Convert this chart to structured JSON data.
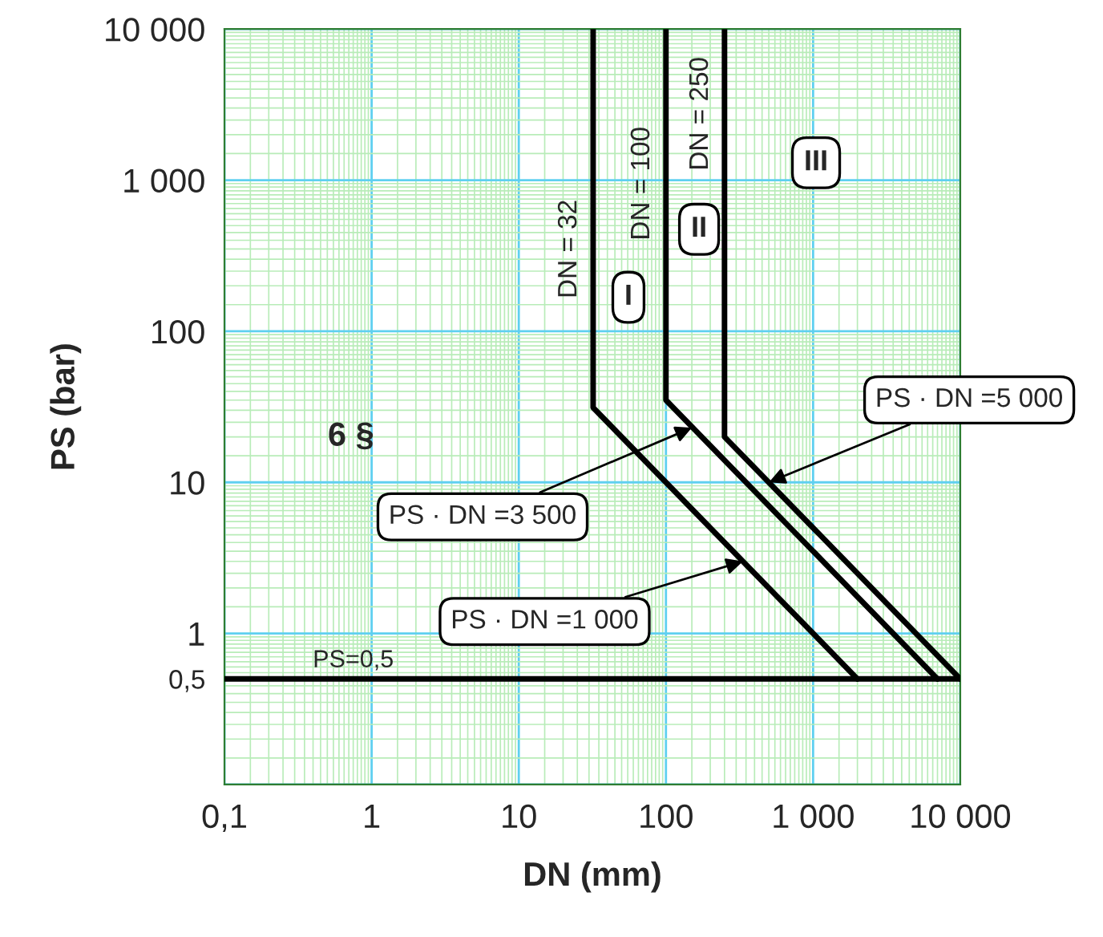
{
  "chart_data": {
    "type": "line",
    "xlabel": "DN (mm)",
    "ylabel": "PS (bar)",
    "log": "xy",
    "grid": true,
    "marker": "none",
    "line_style": "solid",
    "xlim": [
      0.1,
      10000
    ],
    "ylim": [
      0.1,
      10000
    ],
    "xticks": [
      {
        "value": 0.1,
        "label": "0,1"
      },
      1,
      10,
      100,
      {
        "value": 1000,
        "label": "1 000"
      },
      {
        "value": 10000,
        "label": "10 000"
      },
      {
        "value": 0.15,
        "label": null
      },
      {
        "value": 0.2,
        "label": null
      },
      {
        "value": 0.25,
        "label": null
      },
      {
        "value": 0.3,
        "label": null
      },
      {
        "value": 0.35,
        "label": null
      },
      {
        "value": 0.4,
        "label": null
      },
      {
        "value": 0.45,
        "label": null
      },
      {
        "value": 0.5,
        "label": null
      },
      {
        "value": 0.55,
        "label": null
      },
      {
        "value": 0.6,
        "label": null
      },
      {
        "value": 0.65,
        "label": null
      },
      {
        "value": 0.7,
        "label": null
      },
      {
        "value": 0.75,
        "label": null
      },
      {
        "value": 0.8,
        "label": null
      },
      {
        "value": 0.85,
        "label": null
      },
      {
        "value": 0.9,
        "label": null
      },
      {
        "value": 0.95,
        "label": null
      },
      {
        "value": 1.5,
        "label": null
      },
      {
        "value": 2,
        "label": null
      },
      {
        "value": 2.5,
        "label": null
      },
      {
        "value": 3,
        "label": null
      },
      {
        "value": 3.5,
        "label": null
      },
      {
        "value": 4,
        "label": null
      },
      {
        "value": 4.5,
        "label": null
      },
      {
        "value": 5,
        "label": null
      },
      {
        "value": 5.5,
        "label": null
      },
      {
        "value": 6,
        "label": null
      },
      {
        "value": 6.5,
        "label": null
      },
      {
        "value": 7,
        "label": null
      },
      {
        "value": 7.5,
        "label": null
      },
      {
        "value": 8,
        "label": null
      },
      {
        "value": 8.5,
        "label": null
      },
      {
        "value": 9,
        "label": null
      },
      {
        "value": 9.5,
        "label": null
      },
      {
        "value": 15,
        "label": null
      },
      {
        "value": 20,
        "label": null
      },
      {
        "value": 25,
        "label": null
      },
      {
        "value": 30,
        "label": null
      },
      {
        "value": 35,
        "label": null
      },
      {
        "value": 40,
        "label": null
      },
      {
        "value": 45,
        "label": null
      },
      {
        "value": 50,
        "label": null
      },
      {
        "value": 55,
        "label": null
      },
      {
        "value": 60,
        "label": null
      },
      {
        "value": 65,
        "label": null
      },
      {
        "value": 70,
        "label": null
      },
      {
        "value": 75,
        "label": null
      },
      {
        "value": 80,
        "label": null
      },
      {
        "value": 85,
        "label": null
      },
      {
        "value": 90,
        "label": null
      },
      {
        "value": 95,
        "label": null
      },
      {
        "value": 150,
        "label": null
      },
      {
        "value": 200,
        "label": null
      },
      {
        "value": 250,
        "label": null
      },
      {
        "value": 300,
        "label": null
      },
      {
        "value": 350,
        "label": null
      },
      {
        "value": 400,
        "label": null
      },
      {
        "value": 450,
        "label": null
      },
      {
        "value": 500,
        "label": null
      },
      {
        "value": 550,
        "label": null
      },
      {
        "value": 600,
        "label": null
      },
      {
        "value": 650,
        "label": null
      },
      {
        "value": 700,
        "label": null
      },
      {
        "value": 750,
        "label": null
      },
      {
        "value": 800,
        "label": null
      },
      {
        "value": 850,
        "label": null
      },
      {
        "value": 900,
        "label": null
      },
      {
        "value": 950,
        "label": null
      },
      {
        "value": 1500,
        "label": null
      },
      {
        "value": 2000,
        "label": null
      },
      {
        "value": 2500,
        "label": null
      },
      {
        "value": 3000,
        "label": null
      },
      {
        "value": 3500,
        "label": null
      },
      {
        "value": 4000,
        "label": null
      },
      {
        "value": 4500,
        "label": null
      },
      {
        "value": 5000,
        "label": null
      },
      {
        "value": 5500,
        "label": null
      },
      {
        "value": 6000,
        "label": null
      },
      {
        "value": 6500,
        "label": null
      },
      {
        "value": 7000,
        "label": null
      },
      {
        "value": 7500,
        "label": null
      },
      {
        "value": 8000,
        "label": null
      },
      {
        "value": 8500,
        "label": null
      },
      {
        "value": 9000,
        "label": null
      },
      {
        "value": 9500,
        "label": null
      }
    ],
    "yticks": [
      {
        "value": 0.1,
        "label": null
      },
      {
        "value": 0.5,
        "label": "0,5"
      },
      1,
      10,
      100,
      {
        "value": 1000,
        "label": "1 000"
      },
      {
        "value": 10000,
        "label": "10 000"
      },
      {
        "value": 0.15,
        "label": null
      },
      {
        "value": 0.2,
        "label": null
      },
      {
        "value": 0.25,
        "label": null
      },
      {
        "value": 0.3,
        "label": null
      },
      {
        "value": 0.35,
        "label": null
      },
      {
        "value": 0.4,
        "label": null
      },
      {
        "value": 0.45,
        "label": null
      },
      {
        "value": 0.55,
        "label": null
      },
      {
        "value": 0.6,
        "label": null
      },
      {
        "value": 0.65,
        "label": null
      },
      {
        "value": 0.7,
        "label": null
      },
      {
        "value": 0.75,
        "label": null
      },
      {
        "value": 0.8,
        "label": null
      },
      {
        "value": 0.85,
        "label": null
      },
      {
        "value": 0.9,
        "label": null
      },
      {
        "value": 0.95,
        "label": null
      },
      {
        "value": 1.5,
        "label": null
      },
      {
        "value": 2,
        "label": null
      },
      {
        "value": 2.5,
        "label": null
      },
      {
        "value": 3,
        "label": null
      },
      {
        "value": 3.5,
        "label": null
      },
      {
        "value": 4,
        "label": null
      },
      {
        "value": 4.5,
        "label": null
      },
      {
        "value": 5,
        "label": null
      },
      {
        "value": 5.5,
        "label": null
      },
      {
        "value": 6,
        "label": null
      },
      {
        "value": 6.5,
        "label": null
      },
      {
        "value": 7,
        "label": null
      },
      {
        "value": 7.5,
        "label": null
      },
      {
        "value": 8,
        "label": null
      },
      {
        "value": 8.5,
        "label": null
      },
      {
        "value": 9,
        "label": null
      },
      {
        "value": 9.5,
        "label": null
      },
      {
        "value": 15,
        "label": null
      },
      {
        "value": 20,
        "label": null
      },
      {
        "value": 25,
        "label": null
      },
      {
        "value": 30,
        "label": null
      },
      {
        "value": 35,
        "label": null
      },
      {
        "value": 40,
        "label": null
      },
      {
        "value": 45,
        "label": null
      },
      {
        "value": 50,
        "label": null
      },
      {
        "value": 55,
        "label": null
      },
      {
        "value": 60,
        "label": null
      },
      {
        "value": 65,
        "label": null
      },
      {
        "value": 70,
        "label": null
      },
      {
        "value": 75,
        "label": null
      },
      {
        "value": 80,
        "label": null
      },
      {
        "value": 85,
        "label": null
      },
      {
        "value": 90,
        "label": null
      },
      {
        "value": 95,
        "label": null
      },
      {
        "value": 150,
        "label": null
      },
      {
        "value": 200,
        "label": null
      },
      {
        "value": 250,
        "label": null
      },
      {
        "value": 300,
        "label": null
      },
      {
        "value": 350,
        "label": null
      },
      {
        "value": 400,
        "label": null
      },
      {
        "value": 450,
        "label": null
      },
      {
        "value": 500,
        "label": null
      },
      {
        "value": 550,
        "label": null
      },
      {
        "value": 600,
        "label": null
      },
      {
        "value": 650,
        "label": null
      },
      {
        "value": 700,
        "label": null
      },
      {
        "value": 750,
        "label": null
      },
      {
        "value": 800,
        "label": null
      },
      {
        "value": 850,
        "label": null
      },
      {
        "value": 900,
        "label": null
      },
      {
        "value": 950,
        "label": null
      },
      {
        "value": 1500,
        "label": null
      },
      {
        "value": 2000,
        "label": null
      },
      {
        "value": 2500,
        "label": null
      },
      {
        "value": 3000,
        "label": null
      },
      {
        "value": 3500,
        "label": null
      },
      {
        "value": 4000,
        "label": null
      },
      {
        "value": 4500,
        "label": null
      },
      {
        "value": 5000,
        "label": null
      },
      {
        "value": 5500,
        "label": null
      },
      {
        "value": 6000,
        "label": null
      },
      {
        "value": 6500,
        "label": null
      },
      {
        "value": 7000,
        "label": null
      },
      {
        "value": 7500,
        "label": null
      },
      {
        "value": 8000,
        "label": null
      },
      {
        "value": 8500,
        "label": null
      },
      {
        "value": 9000,
        "label": null
      },
      {
        "value": 9500,
        "label": null
      }
    ],
    "series": [
      {
        "color": "#000000",
        "x": [
          32,
          32,
          2000
        ],
        "values": [
          10000,
          31.25,
          0.5
        ]
      },
      {
        "color": "#000000",
        "x": [
          100,
          100,
          7000
        ],
        "values": [
          10000,
          35,
          0.5
        ]
      },
      {
        "color": "#000000",
        "x": [
          250,
          250,
          10000
        ],
        "values": [
          10000,
          20,
          0.5
        ]
      }
    ],
    "ref_lines": [
      {
        "axis": "y",
        "value": 0.5,
        "label": "PS=0,5",
        "color": "#000000",
        "line_style": "solid"
      }
    ],
    "annotations": [
      {
        "text": "DN = 32",
        "x": 32,
        "y": 350
      },
      {
        "text": "DN = 100",
        "x": 100,
        "y": 950
      },
      {
        "text": "DN = 250",
        "x": 250,
        "y": 2750
      },
      "I",
      "II",
      "III",
      "6 §",
      {
        "text": "PS · DN =5 000",
        "x": 500,
        "y": 10
      },
      {
        "text": "PS · DN =3 500",
        "x": 150,
        "y": 23
      },
      {
        "text": "PS · DN =1 000",
        "x": 333,
        "y": 3
      }
    ]
  }
}
